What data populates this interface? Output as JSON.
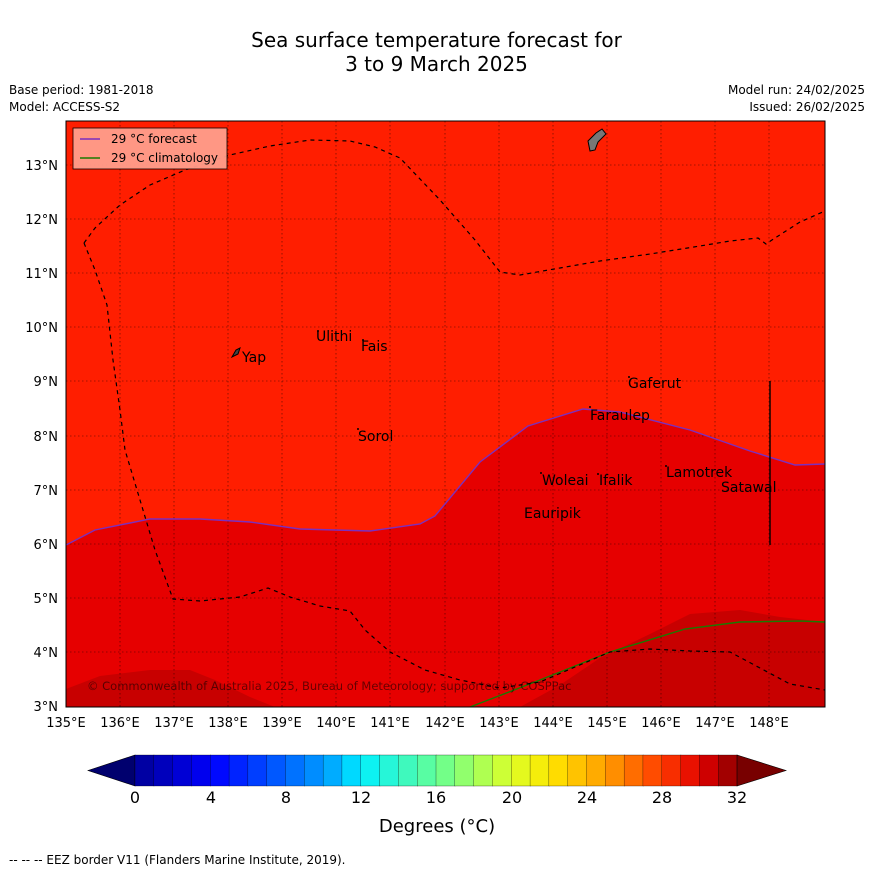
{
  "title_line1": "Sea surface temperature forecast for",
  "title_line2": "3 to 9 March 2025",
  "base_period": "Base period: 1981-2018",
  "model": "Model: ACCESS-S2",
  "model_run": "Model run: 24/02/2025",
  "issued": "Issued: 26/02/2025",
  "legend": {
    "forecast": "29 °C  forecast",
    "climatology": "29 °C  climatology",
    "forecast_color": "#7b2fbf",
    "climatology_color": "#1a7a00"
  },
  "copyright": "© Commonwealth of Australia 2025, Bureau of Meteorology; supported by COSPPac",
  "places": [
    "Ulithi",
    "Fais",
    "Yap",
    "Gaferut",
    "Faraulep",
    "Sorol",
    "Woleai",
    "Ifalik",
    "Lamotrek",
    "Satawal",
    "Eauripik"
  ],
  "lon_ticks": [
    "135°E",
    "136°E",
    "137°E",
    "138°E",
    "139°E",
    "140°E",
    "141°E",
    "142°E",
    "143°E",
    "144°E",
    "145°E",
    "146°E",
    "147°E",
    "148°E"
  ],
  "lat_ticks": [
    "3°N",
    "4°N",
    "5°N",
    "6°N",
    "7°N",
    "8°N",
    "9°N",
    "10°N",
    "11°N",
    "12°N",
    "13°N"
  ],
  "colorbar": {
    "ticks": [
      "0",
      "4",
      "8",
      "12",
      "16",
      "20",
      "24",
      "28",
      "32"
    ],
    "label": "Degrees (°C)"
  },
  "footer": "--  --  -- EEZ border V11 (Flanders Marine Institute, 2019).",
  "colors": {
    "sst_28_29": "#ff1e00",
    "sst_29_30": "#e60000",
    "sst_30_31": "#c80000"
  }
}
